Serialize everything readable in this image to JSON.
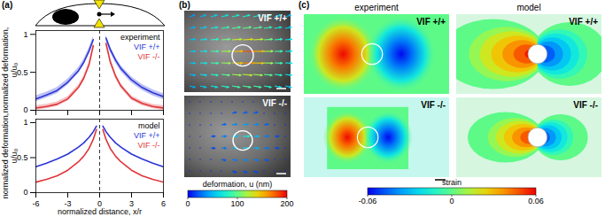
{
  "panel_labels": [
    "(a)",
    "(b)",
    "(c)"
  ],
  "chart_data": [
    {
      "type": "line",
      "title": "experiment",
      "ylabel": "normalized deformation, u/u₀",
      "tick_labels": "y",
      "legend": "top-right",
      "xlim": [
        -6,
        6
      ],
      "xticks": [
        -6,
        -3,
        0,
        3,
        6
      ],
      "ylim": [
        0,
        1.05
      ],
      "yticks": [
        0,
        0.5,
        1
      ],
      "annotations": [
        {
          "x": 0,
          "line_style": "dashed"
        }
      ],
      "x": [
        -6,
        -5,
        -4,
        -3,
        -2,
        -1.5,
        -1,
        -0.6,
        0,
        0.6,
        1,
        1.5,
        2,
        3,
        4,
        5,
        6
      ],
      "series": [
        {
          "name": "VIF +/+",
          "color": "#2b35d8",
          "values": [
            0.15,
            0.2,
            0.26,
            0.37,
            0.52,
            0.63,
            0.78,
            0.93,
            null,
            0.95,
            0.8,
            0.66,
            0.55,
            0.4,
            0.3,
            0.23,
            0.18
          ],
          "errors": [
            0.04,
            0.04,
            0.04,
            0.04,
            0.04,
            0.04,
            0.04,
            0.04,
            null,
            0.04,
            0.04,
            0.04,
            0.04,
            0.04,
            0.04,
            0.04,
            0.04
          ]
        },
        {
          "name": "VIF -/-",
          "color": "#e0363a",
          "values": [
            0.03,
            0.05,
            0.08,
            0.15,
            0.3,
            0.42,
            0.6,
            0.85,
            null,
            0.88,
            0.64,
            0.45,
            0.32,
            0.16,
            0.09,
            0.05,
            0.03
          ],
          "errors": [
            0.03,
            0.03,
            0.03,
            0.03,
            0.03,
            0.03,
            0.03,
            0.03,
            null,
            0.03,
            0.03,
            0.03,
            0.03,
            0.03,
            0.03,
            0.03,
            0.03
          ]
        }
      ]
    },
    {
      "type": "line",
      "title": "model",
      "xlabel": "normalized distance, x/r",
      "ylabel": "normalized deformation, u/u₀",
      "legend": "top-right",
      "xlim": [
        -6,
        6
      ],
      "xticks": [
        -6,
        -3,
        0,
        3,
        6
      ],
      "ylim": [
        0,
        1.05
      ],
      "yticks": [
        0,
        0.5,
        1
      ],
      "annotations": [
        {
          "x": 0,
          "line_style": "dashed"
        }
      ],
      "x": [
        -6,
        -5,
        -4,
        -3,
        -2,
        -1.5,
        -1,
        -0.6,
        -0.3,
        0,
        0.3,
        0.6,
        1,
        1.5,
        2,
        3,
        4,
        5,
        6
      ],
      "series": [
        {
          "name": "VIF +/+",
          "color": "#2b35d8",
          "values": [
            0.37,
            0.42,
            0.48,
            0.55,
            0.65,
            0.71,
            0.79,
            0.87,
            0.95,
            null,
            0.95,
            0.87,
            0.79,
            0.71,
            0.65,
            0.55,
            0.48,
            0.42,
            0.37
          ]
        },
        {
          "name": "VIF -/-",
          "color": "#e0363a",
          "values": [
            0.15,
            0.19,
            0.24,
            0.32,
            0.44,
            0.52,
            0.63,
            0.76,
            0.9,
            null,
            0.9,
            0.76,
            0.63,
            0.52,
            0.44,
            0.32,
            0.24,
            0.19,
            0.15
          ]
        }
      ]
    }
  ],
  "panel_b": {
    "images": [
      "VIF +/+",
      "VIF -/-"
    ],
    "colorbar": {
      "label": "deformation, u (nm)",
      "range": [
        0,
        200
      ],
      "ticks": [
        0,
        100,
        200
      ]
    }
  },
  "panel_c": {
    "columns": [
      "experiment",
      "model"
    ],
    "rows": [
      "VIF +/+",
      "VIF -/-"
    ],
    "colorbar": {
      "label": "strain",
      "range": [
        -0.06,
        0.06
      ],
      "ticks": [
        -0.06,
        0,
        0.06
      ]
    }
  }
}
